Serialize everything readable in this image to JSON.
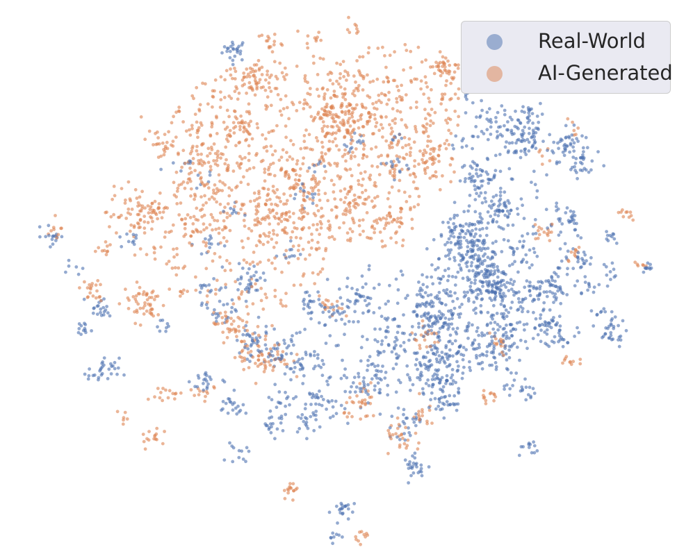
{
  "chart_data": {
    "type": "scatter",
    "title": "",
    "xlabel": "",
    "ylabel": "",
    "axes_visible": false,
    "grid": false,
    "xlim": [
      -100,
      100
    ],
    "ylim": [
      -90,
      90
    ],
    "legend_position": "top-right",
    "series": [
      {
        "name": "Real-World",
        "color": "#4c72b0",
        "point_alpha": 0.6,
        "clusters": [
          {
            "x": -36,
            "y": 82,
            "spread": 2.0,
            "count": 25
          },
          {
            "x": 3,
            "y": 48,
            "spread": 2.0,
            "count": 12
          },
          {
            "x": 37,
            "y": 48,
            "spread": 2.0,
            "count": 10
          },
          {
            "x": 39,
            "y": 66,
            "spread": 1.5,
            "count": 6
          },
          {
            "x": 45,
            "y": 55,
            "spread": 3.5,
            "count": 30
          },
          {
            "x": 55,
            "y": 50,
            "spread": 4.0,
            "count": 70
          },
          {
            "x": 58,
            "y": 59,
            "spread": 2.5,
            "count": 25
          },
          {
            "x": 70,
            "y": 48,
            "spread": 3.0,
            "count": 45
          },
          {
            "x": 75,
            "y": 41,
            "spread": 2.5,
            "count": 25
          },
          {
            "x": 42,
            "y": 36,
            "spread": 3.0,
            "count": 50
          },
          {
            "x": 48,
            "y": 24,
            "spread": 3.5,
            "count": 60
          },
          {
            "x": 36,
            "y": 14,
            "spread": 4.0,
            "count": 80
          },
          {
            "x": 44,
            "y": 12,
            "spread": 2.5,
            "count": 20
          },
          {
            "x": 56,
            "y": 10,
            "spread": 3.0,
            "count": 25
          },
          {
            "x": 67,
            "y": 0,
            "spread": 2.5,
            "count": 20
          },
          {
            "x": 75,
            "y": 6,
            "spread": 2.0,
            "count": 15
          },
          {
            "x": 84,
            "y": 3,
            "spread": 1.5,
            "count": 10
          },
          {
            "x": 44,
            "y": 0,
            "spread": 4.5,
            "count": 70
          },
          {
            "x": 48,
            "y": -5,
            "spread": 3.0,
            "count": 40
          },
          {
            "x": 60,
            "y": -4,
            "spread": 3.0,
            "count": 30
          },
          {
            "x": 63,
            "y": -17,
            "spread": 3.0,
            "count": 35
          },
          {
            "x": 68,
            "y": -20,
            "spread": 2.5,
            "count": 25
          },
          {
            "x": 66,
            "y": -5,
            "spread": 2.0,
            "count": 12
          },
          {
            "x": 84,
            "y": -20,
            "spread": 2.5,
            "count": 25
          },
          {
            "x": 48,
            "y": -27,
            "spread": 4.0,
            "count": 40
          },
          {
            "x": 55,
            "y": -40,
            "spread": 2.5,
            "count": 20
          },
          {
            "x": 32,
            "y": -45,
            "spread": 2.5,
            "count": 20
          },
          {
            "x": 28,
            "y": -14,
            "spread": 4.5,
            "count": 50
          },
          {
            "x": 27,
            "y": -32,
            "spread": 4.5,
            "count": 60
          },
          {
            "x": 29,
            "y": -38,
            "spread": 3.0,
            "count": 30
          },
          {
            "x": 14,
            "y": -22,
            "spread": 4.5,
            "count": 40
          },
          {
            "x": 5,
            "y": -8,
            "spread": 3.0,
            "count": 25
          },
          {
            "x": 10,
            "y": -35,
            "spread": 2.5,
            "count": 20
          },
          {
            "x": 5,
            "y": -39,
            "spread": 3.0,
            "count": 25
          },
          {
            "x": 19,
            "y": -53,
            "spread": 2.5,
            "count": 20
          },
          {
            "x": 22,
            "y": -68,
            "spread": 2.0,
            "count": 25
          },
          {
            "x": -1,
            "y": -84,
            "spread": 2.0,
            "count": 20
          },
          {
            "x": -5,
            "y": -93,
            "spread": 1.2,
            "count": 8
          },
          {
            "x": -14,
            "y": -31,
            "spread": 3.0,
            "count": 30
          },
          {
            "x": -9,
            "y": -45,
            "spread": 3.0,
            "count": 25
          },
          {
            "x": -13,
            "y": -52,
            "spread": 2.5,
            "count": 20
          },
          {
            "x": -24,
            "y": -53,
            "spread": 2.0,
            "count": 15
          },
          {
            "x": -22,
            "y": -28,
            "spread": 3.5,
            "count": 35
          },
          {
            "x": -31,
            "y": -23,
            "spread": 3.0,
            "count": 30
          },
          {
            "x": -37,
            "y": -47,
            "spread": 2.5,
            "count": 20
          },
          {
            "x": -45,
            "y": -37,
            "spread": 2.5,
            "count": 20
          },
          {
            "x": -35,
            "y": -64,
            "spread": 1.8,
            "count": 12
          },
          {
            "x": -22,
            "y": -45,
            "spread": 2.5,
            "count": 20
          },
          {
            "x": -31,
            "y": 0,
            "spread": 3.0,
            "count": 30
          },
          {
            "x": -40,
            "y": -10,
            "spread": 4.0,
            "count": 30
          },
          {
            "x": -12,
            "y": -9,
            "spread": 2.5,
            "count": 20
          },
          {
            "x": -6,
            "y": -14,
            "spread": 3.0,
            "count": 20
          },
          {
            "x": -45,
            "y": 12,
            "spread": 2.0,
            "count": 12
          },
          {
            "x": -45,
            "y": -3,
            "spread": 2.0,
            "count": 8
          },
          {
            "x": -37,
            "y": 24,
            "spread": 1.5,
            "count": 8
          },
          {
            "x": -46,
            "y": 35,
            "spread": 1.5,
            "count": 6
          },
          {
            "x": -60,
            "y": -18,
            "spread": 1.5,
            "count": 8
          },
          {
            "x": -78,
            "y": -34,
            "spread": 2.5,
            "count": 30
          },
          {
            "x": -79,
            "y": -11,
            "spread": 2.0,
            "count": 20
          },
          {
            "x": -85,
            "y": -19,
            "spread": 1.5,
            "count": 12
          },
          {
            "x": -69,
            "y": 14,
            "spread": 2.0,
            "count": 10
          },
          {
            "x": -94,
            "y": 15,
            "spread": 1.8,
            "count": 15
          },
          {
            "x": -88,
            "y": 4,
            "spread": 1.5,
            "count": 6
          },
          {
            "x": -53,
            "y": 42,
            "spread": 2.0,
            "count": 8
          },
          {
            "x": 58,
            "y": -62,
            "spread": 1.5,
            "count": 12
          },
          {
            "x": -13,
            "y": 31,
            "spread": 2.5,
            "count": 12
          },
          {
            "x": -10,
            "y": 40,
            "spread": 1.5,
            "count": 6
          },
          {
            "x": -19,
            "y": 9,
            "spread": 2.0,
            "count": 10
          },
          {
            "x": 16,
            "y": 40,
            "spread": 2.0,
            "count": 12
          },
          {
            "x": 17,
            "y": 50,
            "spread": 1.5,
            "count": 6
          },
          {
            "x": 70,
            "y": 22,
            "spread": 2.5,
            "count": 20
          },
          {
            "x": 84,
            "y": 15,
            "spread": 1.5,
            "count": 10
          },
          {
            "x": 96,
            "y": 4,
            "spread": 1.2,
            "count": 10
          },
          {
            "x": 77,
            "y": -3,
            "spread": 2.0,
            "count": 12
          },
          {
            "x": 82,
            "y": -13,
            "spread": 2.0,
            "count": 12
          }
        ],
        "scatter_regions": [
          {
            "x": 38,
            "y": -12,
            "rx": 18,
            "ry": 22,
            "count": 300
          },
          {
            "x": 10,
            "y": -25,
            "rx": 30,
            "ry": 30,
            "count": 120
          },
          {
            "x": 55,
            "y": 10,
            "rx": 20,
            "ry": 30,
            "count": 100
          }
        ]
      },
      {
        "name": "AI-Generated",
        "color": "#dd8452",
        "point_alpha": 0.6,
        "clusters": [
          {
            "x": -30,
            "y": 72,
            "spread": 3.0,
            "count": 40
          },
          {
            "x": -25,
            "y": 85,
            "spread": 2.0,
            "count": 15
          },
          {
            "x": -45,
            "y": 44,
            "spread": 2.5,
            "count": 20
          },
          {
            "x": -61,
            "y": 49,
            "spread": 2.5,
            "count": 20
          },
          {
            "x": -67,
            "y": 23,
            "spread": 5.0,
            "count": 80
          },
          {
            "x": -51,
            "y": 19,
            "spread": 3.0,
            "count": 25
          },
          {
            "x": -65,
            "y": -9,
            "spread": 3.5,
            "count": 50
          },
          {
            "x": -78,
            "y": 10,
            "spread": 1.5,
            "count": 10
          },
          {
            "x": -94,
            "y": 17,
            "spread": 1.5,
            "count": 10
          },
          {
            "x": -82,
            "y": -5,
            "spread": 2.0,
            "count": 20
          },
          {
            "x": -38,
            "y": -17,
            "spread": 2.5,
            "count": 20
          },
          {
            "x": -27,
            "y": -28,
            "spread": 4.5,
            "count": 60
          },
          {
            "x": -33,
            "y": -22,
            "spread": 3.0,
            "count": 20
          },
          {
            "x": -13,
            "y": 34,
            "spread": 3.0,
            "count": 25
          },
          {
            "x": -2,
            "y": 59,
            "spread": 5.0,
            "count": 120
          },
          {
            "x": 1,
            "y": 90,
            "spread": 1.5,
            "count": 8
          },
          {
            "x": -10,
            "y": 87,
            "spread": 2.0,
            "count": 10
          },
          {
            "x": 12,
            "y": 18,
            "spread": 3.5,
            "count": 35
          },
          {
            "x": 31,
            "y": 76,
            "spread": 3.0,
            "count": 30
          },
          {
            "x": -23,
            "y": 24,
            "spread": 3.5,
            "count": 25
          },
          {
            "x": 2,
            "y": 30,
            "spread": 3.0,
            "count": 20
          },
          {
            "x": -34,
            "y": 54,
            "spread": 3.0,
            "count": 25
          },
          {
            "x": -5,
            "y": -11,
            "spread": 2.0,
            "count": 15
          },
          {
            "x": -46,
            "y": -42,
            "spread": 2.5,
            "count": 12
          },
          {
            "x": -58,
            "y": -42,
            "spread": 2.0,
            "count": 15
          },
          {
            "x": -72,
            "y": -51,
            "spread": 1.5,
            "count": 6
          },
          {
            "x": -62,
            "y": -57,
            "spread": 2.0,
            "count": 15
          },
          {
            "x": -18,
            "y": -76,
            "spread": 1.5,
            "count": 15
          },
          {
            "x": 5,
            "y": -93,
            "spread": 1.2,
            "count": 10
          },
          {
            "x": 5,
            "y": -46,
            "spread": 3.0,
            "count": 30
          },
          {
            "x": 18,
            "y": -58,
            "spread": 3.0,
            "count": 25
          },
          {
            "x": 24,
            "y": -50,
            "spread": 2.5,
            "count": 15
          },
          {
            "x": 25,
            "y": -22,
            "spread": 2.5,
            "count": 20
          },
          {
            "x": 48,
            "y": -24,
            "spread": 2.0,
            "count": 15
          },
          {
            "x": 45,
            "y": -44,
            "spread": 2.0,
            "count": 12
          },
          {
            "x": 71,
            "y": -30,
            "spread": 1.5,
            "count": 10
          },
          {
            "x": 89,
            "y": 23,
            "spread": 1.5,
            "count": 10
          },
          {
            "x": 94,
            "y": 4,
            "spread": 1.2,
            "count": 6
          },
          {
            "x": 63,
            "y": 17,
            "spread": 2.0,
            "count": 15
          },
          {
            "x": 72,
            "y": 8,
            "spread": 1.5,
            "count": 10
          },
          {
            "x": 72,
            "y": 54,
            "spread": 1.5,
            "count": 6
          },
          {
            "x": 62,
            "y": 44,
            "spread": 1.5,
            "count": 6
          }
        ],
        "scatter_regions": [
          {
            "x": -15,
            "y": 45,
            "rx": 45,
            "ry": 35,
            "count": 700
          },
          {
            "x": -35,
            "y": 15,
            "rx": 30,
            "ry": 30,
            "count": 250
          },
          {
            "x": 15,
            "y": 60,
            "rx": 20,
            "ry": 25,
            "count": 120
          },
          {
            "x": 28,
            "y": 55,
            "rx": 10,
            "ry": 25,
            "count": 50
          }
        ]
      }
    ]
  }
}
